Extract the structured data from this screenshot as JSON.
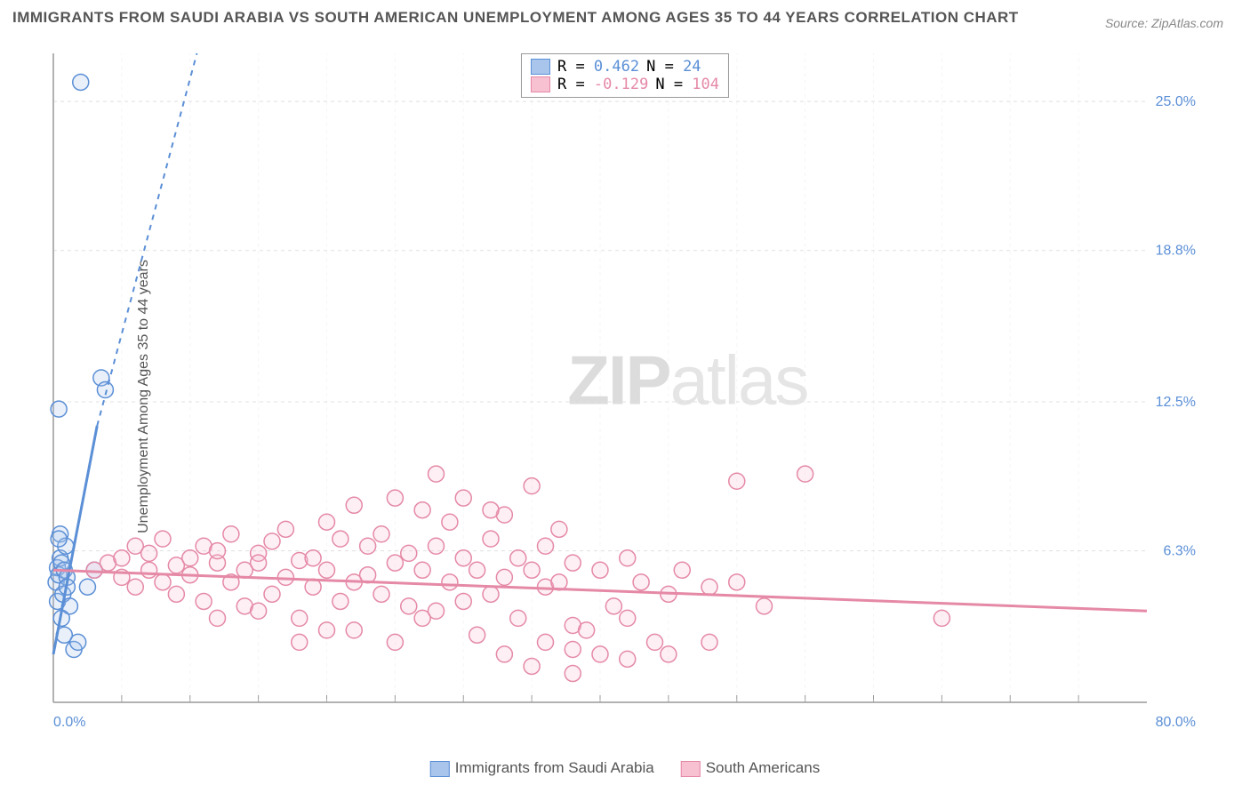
{
  "title": "IMMIGRANTS FROM SAUDI ARABIA VS SOUTH AMERICAN UNEMPLOYMENT AMONG AGES 35 TO 44 YEARS CORRELATION CHART",
  "source": "Source: ZipAtlas.com",
  "ylabel": "Unemployment Among Ages 35 to 44 years",
  "watermark_a": "ZIP",
  "watermark_b": "atlas",
  "chart": {
    "type": "scatter",
    "xlim": [
      0,
      80
    ],
    "ylim": [
      0,
      27
    ],
    "x_min_label": "0.0%",
    "x_max_label": "80.0%",
    "y_ticks": [
      {
        "v": 6.3,
        "label": "6.3%"
      },
      {
        "v": 12.5,
        "label": "12.5%"
      },
      {
        "v": 18.8,
        "label": "18.8%"
      },
      {
        "v": 25.0,
        "label": "25.0%"
      }
    ],
    "x_grid_step": 5,
    "background": "#ffffff",
    "grid_color": "#e0e0e0",
    "grid_dash": "4 4",
    "marker_radius": 9,
    "marker_stroke_width": 1.5,
    "marker_fill_opacity": 0.25,
    "series": [
      {
        "name": "Immigrants from Saudi Arabia",
        "color_stroke": "#5b8fd6",
        "color_fill": "#a9c5ec",
        "R": "0.462",
        "N": "24",
        "trend_solid": {
          "x1": 0,
          "y1": 2.0,
          "x2": 3.2,
          "y2": 11.5
        },
        "trend_dash": {
          "x1": 3.2,
          "y1": 11.5,
          "x2": 10.5,
          "y2": 27
        },
        "trend_width": 3,
        "points": [
          [
            0.2,
            5.0
          ],
          [
            0.3,
            5.6
          ],
          [
            0.5,
            6.0
          ],
          [
            0.4,
            5.3
          ],
          [
            0.6,
            5.8
          ],
          [
            0.8,
            5.5
          ],
          [
            0.3,
            4.2
          ],
          [
            0.7,
            4.5
          ],
          [
            1.0,
            5.2
          ],
          [
            0.5,
            7.0
          ],
          [
            0.9,
            6.5
          ],
          [
            0.4,
            6.8
          ],
          [
            1.2,
            4.0
          ],
          [
            0.6,
            3.5
          ],
          [
            0.8,
            2.8
          ],
          [
            1.5,
            2.2
          ],
          [
            1.8,
            2.5
          ],
          [
            2.5,
            4.8
          ],
          [
            3.0,
            5.5
          ],
          [
            0.4,
            12.2
          ],
          [
            3.5,
            13.5
          ],
          [
            3.8,
            13.0
          ],
          [
            1.0,
            4.8
          ],
          [
            2.0,
            25.8
          ]
        ]
      },
      {
        "name": "South Americans",
        "color_stroke": "#e589a6",
        "color_fill": "#f7c1d2",
        "R": "-0.129",
        "N": "104",
        "trend_solid": {
          "x1": 0,
          "y1": 5.5,
          "x2": 80,
          "y2": 3.8
        },
        "trend_width": 3,
        "points": [
          [
            3,
            5.5
          ],
          [
            4,
            5.8
          ],
          [
            5,
            6.0
          ],
          [
            5,
            5.2
          ],
          [
            6,
            4.8
          ],
          [
            6,
            6.5
          ],
          [
            7,
            5.5
          ],
          [
            7,
            6.2
          ],
          [
            8,
            5.0
          ],
          [
            8,
            6.8
          ],
          [
            9,
            5.7
          ],
          [
            9,
            4.5
          ],
          [
            10,
            6.0
          ],
          [
            10,
            5.3
          ],
          [
            11,
            6.5
          ],
          [
            11,
            4.2
          ],
          [
            12,
            5.8
          ],
          [
            12,
            6.3
          ],
          [
            13,
            5.0
          ],
          [
            13,
            7.0
          ],
          [
            14,
            5.5
          ],
          [
            14,
            4.0
          ],
          [
            15,
            6.2
          ],
          [
            15,
            5.8
          ],
          [
            16,
            4.5
          ],
          [
            16,
            6.7
          ],
          [
            17,
            5.2
          ],
          [
            17,
            7.2
          ],
          [
            18,
            5.9
          ],
          [
            18,
            3.5
          ],
          [
            19,
            6.0
          ],
          [
            19,
            4.8
          ],
          [
            20,
            5.5
          ],
          [
            20,
            7.5
          ],
          [
            21,
            4.2
          ],
          [
            21,
            6.8
          ],
          [
            22,
            5.0
          ],
          [
            22,
            3.0
          ],
          [
            23,
            6.5
          ],
          [
            23,
            5.3
          ],
          [
            24,
            4.5
          ],
          [
            24,
            7.0
          ],
          [
            25,
            5.8
          ],
          [
            25,
            2.5
          ],
          [
            26,
            6.2
          ],
          [
            26,
            4.0
          ],
          [
            27,
            5.5
          ],
          [
            27,
            8.0
          ],
          [
            28,
            3.8
          ],
          [
            28,
            6.5
          ],
          [
            29,
            5.0
          ],
          [
            29,
            7.5
          ],
          [
            30,
            4.2
          ],
          [
            30,
            6.0
          ],
          [
            31,
            5.5
          ],
          [
            31,
            2.8
          ],
          [
            32,
            6.8
          ],
          [
            32,
            4.5
          ],
          [
            33,
            5.2
          ],
          [
            33,
            7.8
          ],
          [
            34,
            3.5
          ],
          [
            34,
            6.0
          ],
          [
            35,
            5.5
          ],
          [
            35,
            1.5
          ],
          [
            36,
            4.8
          ],
          [
            36,
            6.5
          ],
          [
            37,
            5.0
          ],
          [
            37,
            7.2
          ],
          [
            38,
            3.2
          ],
          [
            38,
            5.8
          ],
          [
            28,
            9.5
          ],
          [
            30,
            8.5
          ],
          [
            32,
            8.0
          ],
          [
            25,
            8.5
          ],
          [
            22,
            8.2
          ],
          [
            40,
            2.0
          ],
          [
            40,
            5.5
          ],
          [
            41,
            4.0
          ],
          [
            42,
            6.0
          ],
          [
            42,
            3.5
          ],
          [
            43,
            5.0
          ],
          [
            44,
            2.5
          ],
          [
            45,
            4.5
          ],
          [
            46,
            5.5
          ],
          [
            38,
            2.2
          ],
          [
            35,
            9.0
          ],
          [
            48,
            4.8
          ],
          [
            38,
            1.2
          ],
          [
            50,
            9.2
          ],
          [
            52,
            4.0
          ],
          [
            55,
            9.5
          ],
          [
            45,
            2.0
          ],
          [
            42,
            1.8
          ],
          [
            48,
            2.5
          ],
          [
            50,
            5.0
          ],
          [
            33,
            2.0
          ],
          [
            36,
            2.5
          ],
          [
            39,
            3.0
          ],
          [
            65,
            3.5
          ],
          [
            15,
            3.8
          ],
          [
            18,
            2.5
          ],
          [
            20,
            3.0
          ],
          [
            12,
            3.5
          ],
          [
            27,
            3.5
          ]
        ]
      }
    ]
  },
  "legend_bottom": [
    {
      "label": "Immigrants from Saudi Arabia",
      "fill": "#a9c5ec",
      "stroke": "#5b8fd6"
    },
    {
      "label": "South Americans",
      "fill": "#f7c1d2",
      "stroke": "#e589a6"
    }
  ]
}
